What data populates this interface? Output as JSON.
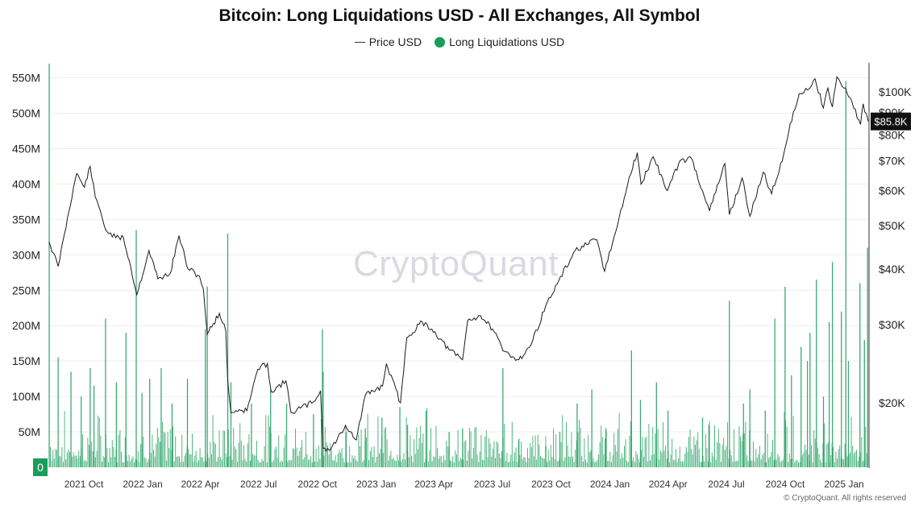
{
  "title": "Bitcoin: Long Liquidations USD - All Exchanges, All Symbol",
  "legend": {
    "price_label": "Price USD",
    "liq_label": "Long Liquidations USD"
  },
  "colors": {
    "liquidations": "#1a9c5a",
    "price": "#1a1a1a",
    "grid": "#eeeeee",
    "badge_bg": "#111111"
  },
  "watermark": "CryptoQuant",
  "copyright": "© CryptoQuant. All rights reserved",
  "price_badge": "$85.8K",
  "zero_label": "0",
  "chart_data": {
    "type": "bar+line",
    "title": "Bitcoin: Long Liquidations USD - All Exchanges, All Symbol",
    "x_tick_labels": [
      "2021 Oct",
      "2022 Jan",
      "2022 Apr",
      "2022 Jul",
      "2022 Oct",
      "2023 Jan",
      "2023 Apr",
      "2023 Jul",
      "2023 Oct",
      "2024 Jan",
      "2024 Apr",
      "2024 Jul",
      "2024 Oct",
      "2025 Jan"
    ],
    "x_tick_dates": [
      "2021-10-01",
      "2022-01-01",
      "2022-04-01",
      "2022-07-01",
      "2022-10-01",
      "2023-01-01",
      "2023-04-01",
      "2023-07-01",
      "2023-10-01",
      "2024-01-01",
      "2024-04-01",
      "2024-07-01",
      "2024-10-01",
      "2025-01-01"
    ],
    "x_range": [
      "2021-09-07",
      "2025-03-10"
    ],
    "left_axis": {
      "unit": "USD",
      "range": [
        0,
        560000000
      ],
      "ticks": [
        0,
        50000000,
        100000000,
        150000000,
        200000000,
        250000000,
        300000000,
        350000000,
        400000000,
        450000000,
        500000000,
        550000000
      ],
      "tick_labels": [
        "0",
        "50M",
        "100M",
        "150M",
        "200M",
        "250M",
        "300M",
        "350M",
        "400M",
        "450M",
        "500M",
        "550M"
      ]
    },
    "right_axis": {
      "unit": "USD",
      "scale": "log",
      "range": [
        14000,
        118000
      ],
      "ticks": [
        20000,
        30000,
        40000,
        50000,
        60000,
        70000,
        80000,
        90000,
        100000
      ],
      "tick_labels": [
        "$20K",
        "$30K",
        "$40K",
        "$50K",
        "$60K",
        "$70K",
        "$80K",
        "$90K",
        "$100K"
      ]
    },
    "grid": true,
    "legend_position": "top-center",
    "series": [
      {
        "name": "Long Liquidations USD",
        "type": "bar",
        "axis": "left",
        "spikes": [
          [
            "2021-09-07",
            570000000
          ],
          [
            "2021-09-21",
            155000000
          ],
          [
            "2021-10-11",
            135000000
          ],
          [
            "2021-10-27",
            100000000
          ],
          [
            "2021-11-10",
            140000000
          ],
          [
            "2021-11-16",
            115000000
          ],
          [
            "2021-12-04",
            210000000
          ],
          [
            "2021-12-21",
            120000000
          ],
          [
            "2022-01-05",
            190000000
          ],
          [
            "2022-01-21",
            335000000
          ],
          [
            "2022-01-30",
            105000000
          ],
          [
            "2022-02-11",
            125000000
          ],
          [
            "2022-03-01",
            140000000
          ],
          [
            "2022-03-18",
            90000000
          ],
          [
            "2022-04-11",
            125000000
          ],
          [
            "2022-05-09",
            195000000
          ],
          [
            "2022-05-12",
            255000000
          ],
          [
            "2022-06-13",
            330000000
          ],
          [
            "2022-06-18",
            120000000
          ],
          [
            "2022-07-20",
            90000000
          ],
          [
            "2022-08-19",
            110000000
          ],
          [
            "2022-09-13",
            90000000
          ],
          [
            "2022-10-25",
            75000000
          ],
          [
            "2022-11-08",
            195000000
          ],
          [
            "2022-11-09",
            135000000
          ],
          [
            "2022-12-15",
            50000000
          ],
          [
            "2023-01-14",
            55000000
          ],
          [
            "2023-02-09",
            70000000
          ],
          [
            "2023-03-09",
            85000000
          ],
          [
            "2023-03-21",
            60000000
          ],
          [
            "2023-04-19",
            80000000
          ],
          [
            "2023-05-25",
            50000000
          ],
          [
            "2023-06-15",
            55000000
          ],
          [
            "2023-08-17",
            140000000
          ],
          [
            "2023-09-11",
            40000000
          ],
          [
            "2023-10-23",
            30000000
          ],
          [
            "2023-11-14",
            50000000
          ],
          [
            "2023-12-11",
            90000000
          ],
          [
            "2024-01-03",
            110000000
          ],
          [
            "2024-01-25",
            55000000
          ],
          [
            "2024-03-05",
            165000000
          ],
          [
            "2024-03-19",
            95000000
          ],
          [
            "2024-04-13",
            120000000
          ],
          [
            "2024-05-01",
            80000000
          ],
          [
            "2024-06-24",
            70000000
          ],
          [
            "2024-07-04",
            60000000
          ],
          [
            "2024-08-05",
            235000000
          ],
          [
            "2024-08-27",
            90000000
          ],
          [
            "2024-09-06",
            110000000
          ],
          [
            "2024-09-30",
            80000000
          ],
          [
            "2024-10-15",
            210000000
          ],
          [
            "2024-10-31",
            255000000
          ],
          [
            "2024-11-10",
            130000000
          ],
          [
            "2024-11-25",
            170000000
          ],
          [
            "2024-12-05",
            150000000
          ],
          [
            "2024-12-09",
            190000000
          ],
          [
            "2024-12-19",
            265000000
          ],
          [
            "2024-12-30",
            100000000
          ],
          [
            "2025-01-08",
            205000000
          ],
          [
            "2025-01-13",
            290000000
          ],
          [
            "2025-01-27",
            220000000
          ],
          [
            "2025-02-03",
            545000000
          ],
          [
            "2025-02-07",
            150000000
          ],
          [
            "2025-02-25",
            260000000
          ],
          [
            "2025-03-04",
            180000000
          ],
          [
            "2025-03-09",
            310000000
          ]
        ]
      },
      {
        "name": "Price USD",
        "type": "line",
        "axis": "right",
        "points": [
          [
            "2021-09-07",
            46000
          ],
          [
            "2021-09-21",
            40500
          ],
          [
            "2021-10-01",
            48000
          ],
          [
            "2021-10-15",
            61000
          ],
          [
            "2021-10-20",
            65500
          ],
          [
            "2021-11-01",
            61000
          ],
          [
            "2021-11-10",
            68000
          ],
          [
            "2021-11-18",
            58000
          ],
          [
            "2021-11-26",
            54000
          ],
          [
            "2021-12-04",
            49000
          ],
          [
            "2021-12-20",
            47000
          ],
          [
            "2022-01-01",
            47000
          ],
          [
            "2022-01-10",
            41800
          ],
          [
            "2022-01-22",
            35000
          ],
          [
            "2022-02-10",
            44000
          ],
          [
            "2022-02-24",
            38000
          ],
          [
            "2022-03-15",
            39000
          ],
          [
            "2022-03-29",
            47500
          ],
          [
            "2022-04-12",
            40000
          ],
          [
            "2022-04-30",
            38500
          ],
          [
            "2022-05-06",
            36000
          ],
          [
            "2022-05-12",
            28500
          ],
          [
            "2022-05-31",
            31800
          ],
          [
            "2022-06-10",
            29000
          ],
          [
            "2022-06-13",
            22500
          ],
          [
            "2022-06-18",
            19000
          ],
          [
            "2022-07-01",
            19300
          ],
          [
            "2022-07-13",
            19200
          ],
          [
            "2022-07-30",
            23800
          ],
          [
            "2022-08-14",
            24500
          ],
          [
            "2022-08-20",
            21200
          ],
          [
            "2022-09-12",
            22400
          ],
          [
            "2022-09-20",
            19000
          ],
          [
            "2022-10-25",
            20100
          ],
          [
            "2022-11-05",
            21300
          ],
          [
            "2022-11-09",
            15800
          ],
          [
            "2022-11-21",
            15700
          ],
          [
            "2022-12-14",
            17800
          ],
          [
            "2022-12-31",
            16500
          ],
          [
            "2023-01-14",
            20800
          ],
          [
            "2023-02-10",
            21800
          ],
          [
            "2023-02-16",
            24500
          ],
          [
            "2023-03-10",
            20000
          ],
          [
            "2023-03-20",
            28000
          ],
          [
            "2023-04-13",
            30400
          ],
          [
            "2023-04-28",
            29300
          ],
          [
            "2023-05-25",
            26300
          ],
          [
            "2023-06-15",
            25000
          ],
          [
            "2023-06-23",
            30600
          ],
          [
            "2023-07-13",
            31400
          ],
          [
            "2023-08-01",
            29300
          ],
          [
            "2023-08-17",
            26200
          ],
          [
            "2023-09-11",
            25000
          ],
          [
            "2023-09-30",
            27000
          ],
          [
            "2023-10-23",
            33000
          ],
          [
            "2023-11-10",
            37000
          ],
          [
            "2023-12-08",
            44000
          ],
          [
            "2024-01-11",
            46500
          ],
          [
            "2024-01-23",
            39500
          ],
          [
            "2024-02-12",
            50000
          ],
          [
            "2024-02-28",
            62000
          ],
          [
            "2024-03-14",
            73000
          ],
          [
            "2024-03-20",
            62000
          ],
          [
            "2024-04-08",
            71500
          ],
          [
            "2024-04-30",
            60000
          ],
          [
            "2024-05-20",
            70000
          ],
          [
            "2024-06-07",
            70800
          ],
          [
            "2024-06-24",
            60000
          ],
          [
            "2024-07-05",
            54000
          ],
          [
            "2024-07-29",
            69000
          ],
          [
            "2024-08-05",
            53000
          ],
          [
            "2024-08-25",
            64000
          ],
          [
            "2024-09-06",
            52500
          ],
          [
            "2024-09-27",
            66000
          ],
          [
            "2024-10-10",
            59000
          ],
          [
            "2024-10-29",
            72500
          ],
          [
            "2024-11-13",
            90000
          ],
          [
            "2024-11-22",
            99000
          ],
          [
            "2024-12-05",
            101000
          ],
          [
            "2024-12-17",
            107000
          ],
          [
            "2024-12-30",
            92000
          ],
          [
            "2025-01-06",
            102000
          ],
          [
            "2025-01-13",
            92500
          ],
          [
            "2025-01-20",
            108000
          ],
          [
            "2025-01-31",
            102000
          ],
          [
            "2025-02-10",
            97000
          ],
          [
            "2025-02-26",
            84500
          ],
          [
            "2025-03-02",
            94000
          ],
          [
            "2025-03-10",
            85800
          ]
        ]
      }
    ]
  }
}
